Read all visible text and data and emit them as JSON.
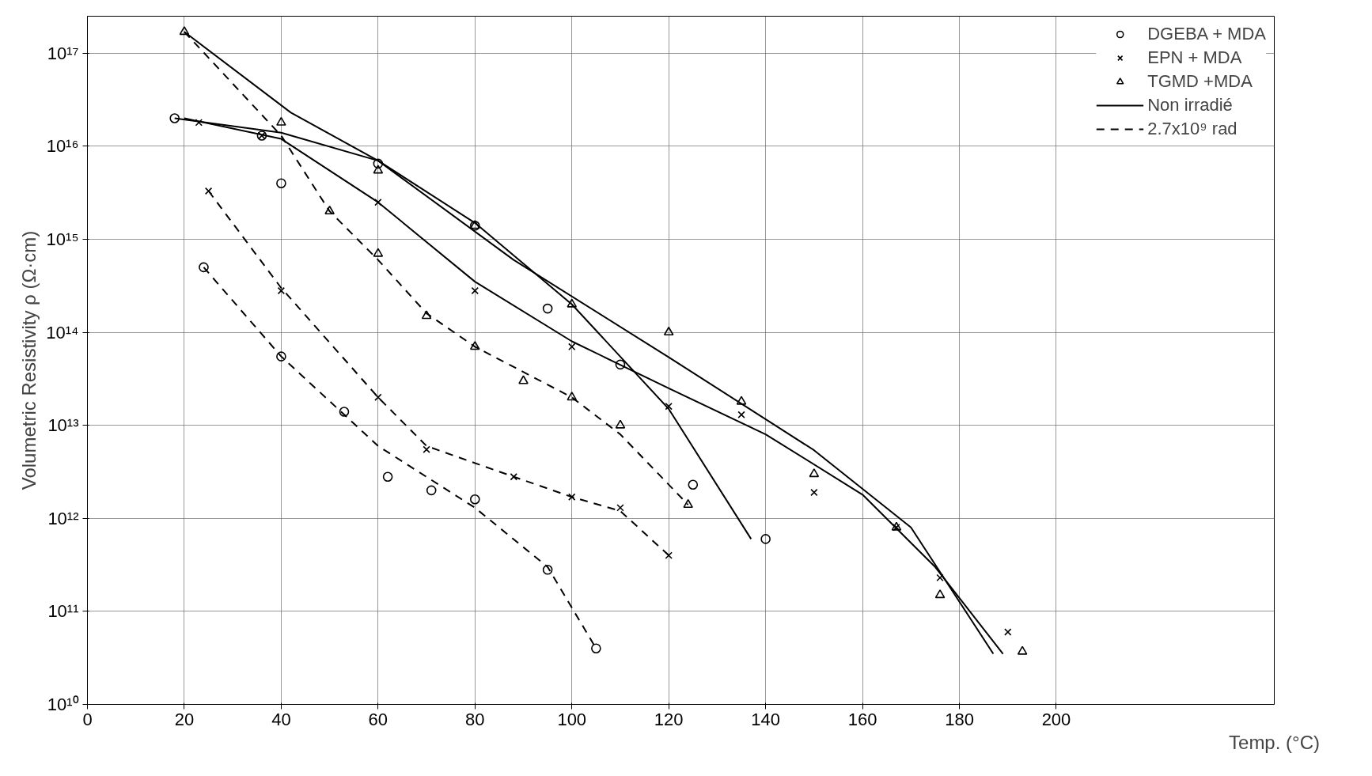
{
  "chart_data": {
    "type": "scatter",
    "xlabel": "Temp. (°C)",
    "ylabel": "Volumetric Resistivity ρ (Ω·cm)",
    "log": "y",
    "grid": true,
    "legend": "top right",
    "xlim": [
      0,
      245
    ],
    "xticks": [
      0,
      20,
      40,
      60,
      80,
      100,
      120,
      140,
      160,
      180,
      200
    ],
    "ylim": [
      10000000000.0,
      2.5e+17
    ],
    "yticks": [
      {
        "value": 10000000000.0,
        "label": "10¹⁰"
      },
      {
        "value": 100000000000.0,
        "label": "10¹¹"
      },
      {
        "value": 1000000000000.0,
        "label": "10¹²"
      },
      {
        "value": 10000000000000.0,
        "label": "10¹³"
      },
      {
        "value": 100000000000000.0,
        "label": "10¹⁴"
      },
      {
        "value": 1000000000000000.0,
        "label": "10¹⁵"
      },
      {
        "value": 1e+16,
        "label": "10¹⁶"
      },
      {
        "value": 1e+17,
        "label": "10¹⁷"
      }
    ],
    "series": [
      {
        "name": "DGEBA + MDA",
        "marker": "circle",
        "color": "#000000",
        "x": [
          18,
          36,
          40,
          60,
          80,
          95,
          110,
          125,
          140,
          24,
          40,
          53,
          62,
          71,
          80,
          95,
          105
        ],
        "values": [
          2e+16,
          1.3e+16,
          4000000000000000.0,
          6500000000000000.0,
          1400000000000000.0,
          180000000000000.0,
          45000000000000.0,
          2300000000000.0,
          600000000000.0,
          500000000000000.0,
          55000000000000.0,
          14000000000000.0,
          2800000000000.0,
          2000000000000.0,
          1600000000000.0,
          280000000000.0,
          40000000000.0
        ]
      },
      {
        "name": "EPN + MDA",
        "marker": "cross",
        "color": "#000000",
        "x": [
          23,
          36,
          60,
          80,
          100,
          120,
          135,
          150,
          167,
          176,
          190,
          25,
          40,
          60,
          70,
          88,
          100,
          110,
          120
        ],
        "values": [
          1.8e+16,
          1.3e+16,
          2500000000000000.0,
          280000000000000.0,
          70000000000000.0,
          16000000000000.0,
          13000000000000.0,
          1900000000000.0,
          800000000000.0,
          230000000000.0,
          60000000000.0,
          3300000000000000.0,
          280000000000000.0,
          20000000000000.0,
          5500000000000.0,
          2800000000000.0,
          1700000000000.0,
          1300000000000.0,
          400000000000.0
        ]
      },
      {
        "name": "TGMD +MDA",
        "marker": "triangle",
        "color": "#000000",
        "x": [
          20,
          40,
          60,
          80,
          100,
          120,
          135,
          150,
          167,
          176,
          193,
          50,
          60,
          70,
          80,
          90,
          100,
          110,
          124
        ],
        "values": [
          1.7e+17,
          1.8e+16,
          5500000000000000.0,
          1400000000000000.0,
          200000000000000.0,
          100000000000000.0,
          18000000000000.0,
          3000000000000.0,
          800000000000.0,
          150000000000.0,
          37000000000.0,
          2000000000000000.0,
          700000000000000.0,
          150000000000000.0,
          70000000000000.0,
          30000000000000.0,
          20000000000000.0,
          10000000000000.0,
          1400000000000.0
        ]
      },
      {
        "name": "Non irradié",
        "type": "line",
        "line_style": "solid",
        "color": "#000000",
        "x": [
          20,
          42,
          60,
          88,
          120,
          150,
          170,
          187
        ],
        "values": [
          1.7e+17,
          2.3e+16,
          7000000000000000.0,
          600000000000000.0,
          54000000000000.0,
          5400000000000.0,
          800000000000.0,
          35000000000.0
        ]
      },
      {
        "type": "line",
        "line_style": "solid",
        "color": "#000000",
        "x": [
          18,
          40,
          60,
          80,
          100,
          120,
          137
        ],
        "values": [
          2e+16,
          1.4e+16,
          7000000000000000.0,
          1500000000000000.0,
          200000000000000.0,
          15000000000000.0,
          600000000000.0
        ]
      },
      {
        "type": "line",
        "line_style": "solid",
        "color": "#000000",
        "x": [
          20,
          40,
          60,
          80,
          100,
          120,
          140,
          160,
          175,
          189
        ],
        "values": [
          2e+16,
          1.2e+16,
          2500000000000000.0,
          350000000000000.0,
          80000000000000.0,
          25000000000000.0,
          8000000000000.0,
          1800000000000.0,
          300000000000.0,
          35000000000.0
        ]
      },
      {
        "name": "2.7x10⁹ rad",
        "type": "line",
        "line_style": "dashed",
        "color": "#000000",
        "x": [
          20,
          40,
          50,
          60,
          70,
          80,
          100,
          110,
          124
        ],
        "values": [
          1.7e+17,
          1.3e+16,
          2000000000000000.0,
          600000000000000.0,
          160000000000000.0,
          70000000000000.0,
          20000000000000.0,
          8000000000000.0,
          1400000000000.0
        ]
      },
      {
        "type": "line",
        "line_style": "dashed",
        "color": "#000000",
        "x": [
          25,
          40,
          60,
          70,
          88,
          100,
          110,
          120
        ],
        "values": [
          3300000000000000.0,
          300000000000000.0,
          20000000000000.0,
          6000000000000.0,
          2800000000000.0,
          1700000000000.0,
          1200000000000.0,
          400000000000.0
        ]
      },
      {
        "type": "line",
        "line_style": "dashed",
        "color": "#000000",
        "x": [
          24,
          40,
          60,
          80,
          95,
          105
        ],
        "values": [
          500000000000000.0,
          55000000000000.0,
          6000000000000.0,
          1300000000000.0,
          300000000000.0,
          40000000000.0
        ]
      }
    ]
  }
}
